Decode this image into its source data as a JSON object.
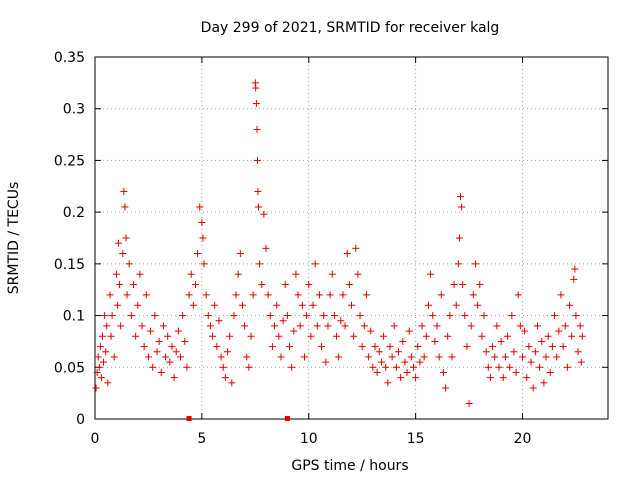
{
  "chart_data": {
    "type": "scatter",
    "title": "Day 299 of 2021, SRMTID for receiver kalg",
    "xlabel": "GPS time / hours",
    "ylabel": "SRMTID / TECUs",
    "xlim": [
      0,
      24
    ],
    "ylim": [
      0,
      0.35
    ],
    "x_ticks": [
      0,
      5,
      10,
      15,
      20
    ],
    "x_tick_labels": [
      "0",
      "5",
      "10",
      "15",
      "20"
    ],
    "y_ticks": [
      0,
      0.05,
      0.1,
      0.15,
      0.2,
      0.25,
      0.3,
      0.35
    ],
    "y_tick_labels": [
      "0",
      "0.05",
      "0.1",
      "0.15",
      "0.2",
      "0.25",
      "0.3",
      "0.35"
    ],
    "grid": true,
    "marker": "+",
    "color": "#e00000",
    "series": [
      {
        "name": "SRMTID",
        "points": [
          [
            0.05,
            0.03
          ],
          [
            0.1,
            0.045
          ],
          [
            0.15,
            0.06
          ],
          [
            0.2,
            0.05
          ],
          [
            0.25,
            0.07
          ],
          [
            0.3,
            0.04
          ],
          [
            0.35,
            0.08
          ],
          [
            0.4,
            0.055
          ],
          [
            0.45,
            0.1
          ],
          [
            0.5,
            0.065
          ],
          [
            0.55,
            0.09
          ],
          [
            0.6,
            0.035
          ],
          [
            0.7,
            0.12
          ],
          [
            0.75,
            0.08
          ],
          [
            0.8,
            0.1
          ],
          [
            0.9,
            0.06
          ],
          [
            1.0,
            0.14
          ],
          [
            1.05,
            0.11
          ],
          [
            1.1,
            0.17
          ],
          [
            1.15,
            0.13
          ],
          [
            1.2,
            0.09
          ],
          [
            1.3,
            0.16
          ],
          [
            1.35,
            0.22
          ],
          [
            1.4,
            0.205
          ],
          [
            1.45,
            0.175
          ],
          [
            1.5,
            0.12
          ],
          [
            1.6,
            0.15
          ],
          [
            1.7,
            0.1
          ],
          [
            1.8,
            0.13
          ],
          [
            1.9,
            0.08
          ],
          [
            2.0,
            0.11
          ],
          [
            2.1,
            0.14
          ],
          [
            2.2,
            0.09
          ],
          [
            2.3,
            0.07
          ],
          [
            2.4,
            0.12
          ],
          [
            2.5,
            0.06
          ],
          [
            2.6,
            0.085
          ],
          [
            2.7,
            0.05
          ],
          [
            2.8,
            0.1
          ],
          [
            2.9,
            0.065
          ],
          [
            3.0,
            0.075
          ],
          [
            3.1,
            0.045
          ],
          [
            3.2,
            0.09
          ],
          [
            3.3,
            0.06
          ],
          [
            3.4,
            0.08
          ],
          [
            3.5,
            0.055
          ],
          [
            3.6,
            0.07
          ],
          [
            3.7,
            0.04
          ],
          [
            3.8,
            0.065
          ],
          [
            3.9,
            0.085
          ],
          [
            4.0,
            0.06
          ],
          [
            4.1,
            0.1
          ],
          [
            4.2,
            0.075
          ],
          [
            4.3,
            0.05
          ],
          [
            4.4,
            0.12
          ],
          [
            4.5,
            0.14
          ],
          [
            4.6,
            0.11
          ],
          [
            4.7,
            0.13
          ],
          [
            4.8,
            0.16
          ],
          [
            4.9,
            0.205
          ],
          [
            5.0,
            0.19
          ],
          [
            5.05,
            0.175
          ],
          [
            5.1,
            0.15
          ],
          [
            5.2,
            0.12
          ],
          [
            5.3,
            0.1
          ],
          [
            5.4,
            0.09
          ],
          [
            5.5,
            0.08
          ],
          [
            5.6,
            0.11
          ],
          [
            5.7,
            0.07
          ],
          [
            5.8,
            0.095
          ],
          [
            5.9,
            0.06
          ],
          [
            6.0,
            0.05
          ],
          [
            6.1,
            0.04
          ],
          [
            6.2,
            0.065
          ],
          [
            6.3,
            0.08
          ],
          [
            6.4,
            0.035
          ],
          [
            6.5,
            0.1
          ],
          [
            6.6,
            0.12
          ],
          [
            6.7,
            0.14
          ],
          [
            6.8,
            0.16
          ],
          [
            6.9,
            0.11
          ],
          [
            7.0,
            0.09
          ],
          [
            7.1,
            0.06
          ],
          [
            7.2,
            0.05
          ],
          [
            7.3,
            0.08
          ],
          [
            7.4,
            0.12
          ],
          [
            7.5,
            0.325
          ],
          [
            7.52,
            0.32
          ],
          [
            7.55,
            0.305
          ],
          [
            7.58,
            0.28
          ],
          [
            7.6,
            0.25
          ],
          [
            7.62,
            0.22
          ],
          [
            7.65,
            0.205
          ],
          [
            7.7,
            0.15
          ],
          [
            7.8,
            0.13
          ],
          [
            7.9,
            0.198
          ],
          [
            8.0,
            0.165
          ],
          [
            8.1,
            0.12
          ],
          [
            8.2,
            0.1
          ],
          [
            8.3,
            0.07
          ],
          [
            8.4,
            0.09
          ],
          [
            8.5,
            0.11
          ],
          [
            8.6,
            0.08
          ],
          [
            8.7,
            0.06
          ],
          [
            8.8,
            0.095
          ],
          [
            8.9,
            0.13
          ],
          [
            9.0,
            0.1
          ],
          [
            9.1,
            0.07
          ],
          [
            9.2,
            0.05
          ],
          [
            9.3,
            0.085
          ],
          [
            9.4,
            0.14
          ],
          [
            9.5,
            0.12
          ],
          [
            9.6,
            0.09
          ],
          [
            9.7,
            0.11
          ],
          [
            9.8,
            0.06
          ],
          [
            9.9,
            0.1
          ],
          [
            10.0,
            0.13
          ],
          [
            10.1,
            0.08
          ],
          [
            10.2,
            0.11
          ],
          [
            10.3,
            0.15
          ],
          [
            10.4,
            0.09
          ],
          [
            10.5,
            0.12
          ],
          [
            10.6,
            0.07
          ],
          [
            10.7,
            0.1
          ],
          [
            10.8,
            0.055
          ],
          [
            10.9,
            0.09
          ],
          [
            11.0,
            0.12
          ],
          [
            11.1,
            0.14
          ],
          [
            11.2,
            0.1
          ],
          [
            11.3,
            0.08
          ],
          [
            11.4,
            0.06
          ],
          [
            11.5,
            0.095
          ],
          [
            11.6,
            0.12
          ],
          [
            11.7,
            0.09
          ],
          [
            11.8,
            0.16
          ],
          [
            11.9,
            0.13
          ],
          [
            12.0,
            0.11
          ],
          [
            12.1,
            0.08
          ],
          [
            12.2,
            0.165
          ],
          [
            12.3,
            0.14
          ],
          [
            12.4,
            0.1
          ],
          [
            12.5,
            0.07
          ],
          [
            12.6,
            0.09
          ],
          [
            12.7,
            0.12
          ],
          [
            12.8,
            0.06
          ],
          [
            12.9,
            0.085
          ],
          [
            13.0,
            0.05
          ],
          [
            13.1,
            0.07
          ],
          [
            13.2,
            0.045
          ],
          [
            13.3,
            0.065
          ],
          [
            13.4,
            0.055
          ],
          [
            13.5,
            0.08
          ],
          [
            13.6,
            0.05
          ],
          [
            13.7,
            0.035
          ],
          [
            13.8,
            0.07
          ],
          [
            13.9,
            0.06
          ],
          [
            14.0,
            0.09
          ],
          [
            14.1,
            0.05
          ],
          [
            14.2,
            0.065
          ],
          [
            14.3,
            0.04
          ],
          [
            14.4,
            0.075
          ],
          [
            14.5,
            0.055
          ],
          [
            14.6,
            0.045
          ],
          [
            14.7,
            0.085
          ],
          [
            14.8,
            0.06
          ],
          [
            14.9,
            0.05
          ],
          [
            15.0,
            0.04
          ],
          [
            15.1,
            0.07
          ],
          [
            15.2,
            0.055
          ],
          [
            15.3,
            0.09
          ],
          [
            15.4,
            0.06
          ],
          [
            15.5,
            0.08
          ],
          [
            15.6,
            0.11
          ],
          [
            15.7,
            0.14
          ],
          [
            15.8,
            0.1
          ],
          [
            15.9,
            0.075
          ],
          [
            16.0,
            0.09
          ],
          [
            16.1,
            0.06
          ],
          [
            16.2,
            0.12
          ],
          [
            16.3,
            0.045
          ],
          [
            16.4,
            0.03
          ],
          [
            16.5,
            0.08
          ],
          [
            16.6,
            0.1
          ],
          [
            16.7,
            0.06
          ],
          [
            16.8,
            0.13
          ],
          [
            16.9,
            0.11
          ],
          [
            17.0,
            0.15
          ],
          [
            17.05,
            0.175
          ],
          [
            17.1,
            0.215
          ],
          [
            17.15,
            0.205
          ],
          [
            17.2,
            0.13
          ],
          [
            17.3,
            0.1
          ],
          [
            17.4,
            0.07
          ],
          [
            17.5,
            0.015
          ],
          [
            17.6,
            0.09
          ],
          [
            17.7,
            0.12
          ],
          [
            17.8,
            0.15
          ],
          [
            17.9,
            0.11
          ],
          [
            18.0,
            0.13
          ],
          [
            18.1,
            0.08
          ],
          [
            18.2,
            0.1
          ],
          [
            18.3,
            0.065
          ],
          [
            18.4,
            0.05
          ],
          [
            18.5,
            0.04
          ],
          [
            18.6,
            0.07
          ],
          [
            18.7,
            0.06
          ],
          [
            18.8,
            0.09
          ],
          [
            18.9,
            0.05
          ],
          [
            19.0,
            0.075
          ],
          [
            19.1,
            0.04
          ],
          [
            19.2,
            0.06
          ],
          [
            19.3,
            0.08
          ],
          [
            19.4,
            0.05
          ],
          [
            19.5,
            0.1
          ],
          [
            19.6,
            0.065
          ],
          [
            19.7,
            0.045
          ],
          [
            19.8,
            0.12
          ],
          [
            19.9,
            0.09
          ],
          [
            20.0,
            0.06
          ],
          [
            20.1,
            0.085
          ],
          [
            20.2,
            0.04
          ],
          [
            20.3,
            0.07
          ],
          [
            20.4,
            0.055
          ],
          [
            20.5,
            0.03
          ],
          [
            20.6,
            0.065
          ],
          [
            20.7,
            0.09
          ],
          [
            20.8,
            0.05
          ],
          [
            20.9,
            0.075
          ],
          [
            21.0,
            0.035
          ],
          [
            21.1,
            0.06
          ],
          [
            21.2,
            0.08
          ],
          [
            21.3,
            0.045
          ],
          [
            21.4,
            0.07
          ],
          [
            21.5,
            0.1
          ],
          [
            21.6,
            0.06
          ],
          [
            21.7,
            0.085
          ],
          [
            21.8,
            0.12
          ],
          [
            21.9,
            0.07
          ],
          [
            22.0,
            0.09
          ],
          [
            22.1,
            0.05
          ],
          [
            22.2,
            0.11
          ],
          [
            22.3,
            0.08
          ],
          [
            22.4,
            0.135
          ],
          [
            22.45,
            0.145
          ],
          [
            22.5,
            0.1
          ],
          [
            22.6,
            0.065
          ],
          [
            22.7,
            0.09
          ],
          [
            22.75,
            0.055
          ],
          [
            22.8,
            0.08
          ]
        ]
      }
    ],
    "axis_markers": [
      4.4,
      9.0
    ]
  }
}
